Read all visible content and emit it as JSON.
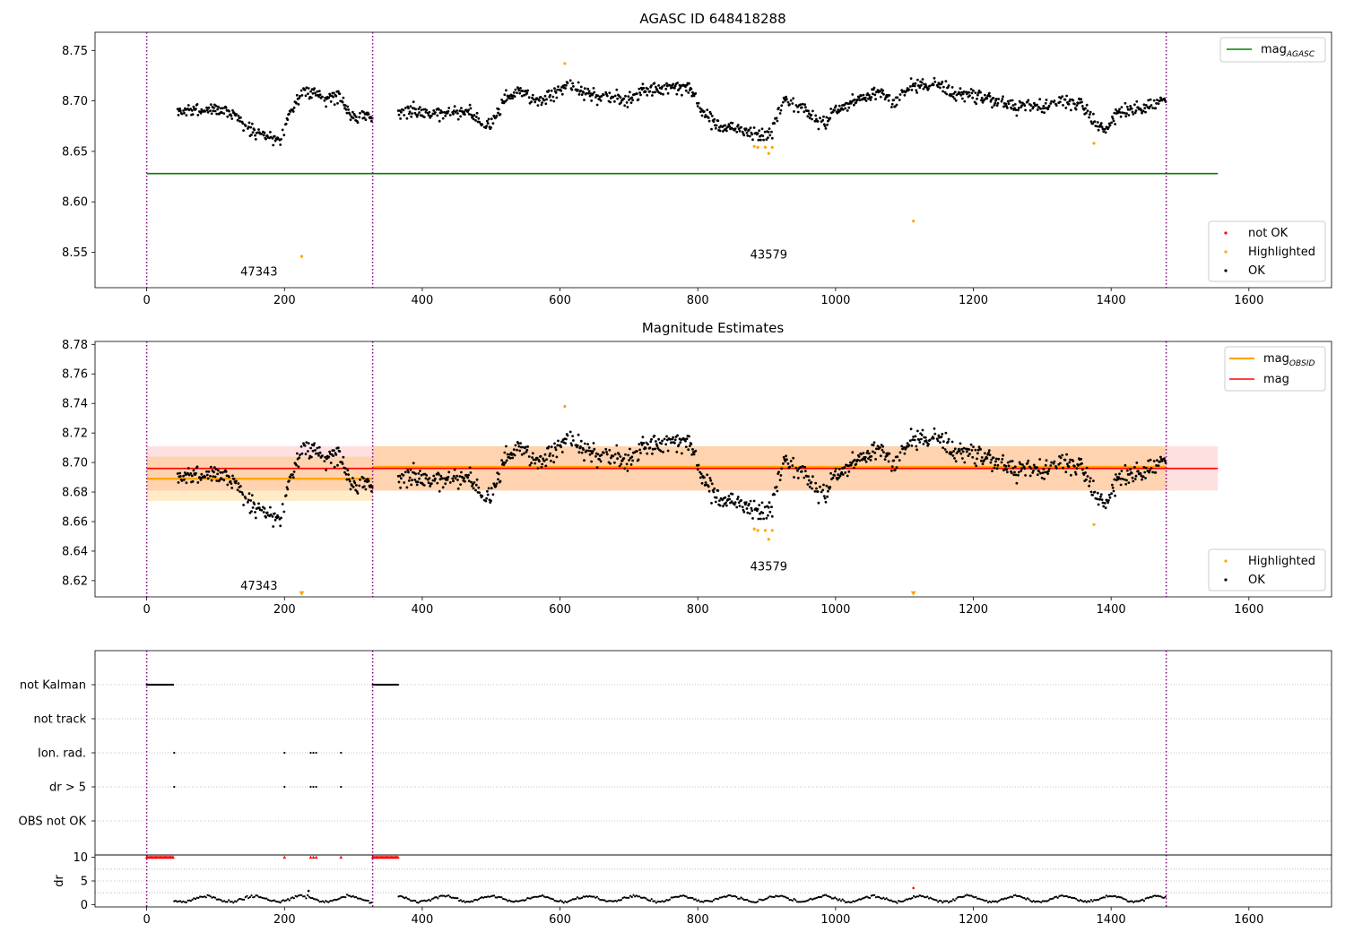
{
  "chart_data": [
    {
      "id": "agasc",
      "type": "scatter",
      "title": "AGASC ID 648418288",
      "xlim": [
        -75,
        1720
      ],
      "ylim": [
        8.515,
        8.768
      ],
      "xticks": [
        0,
        200,
        400,
        600,
        800,
        1000,
        1200,
        1400,
        1600
      ],
      "yticks": [
        8.55,
        8.6,
        8.65,
        8.7,
        8.75
      ],
      "vlines": [
        0,
        328,
        1480
      ],
      "hlines": [
        {
          "name": "mag_AGASC",
          "y": 8.628,
          "x0": 0,
          "x1": 1555,
          "color": "#008000"
        }
      ],
      "obs_labels": [
        {
          "text": "47343",
          "x": 163,
          "y": 8.527
        },
        {
          "text": "43579",
          "x": 903,
          "y": 8.544
        }
      ],
      "legend_top": {
        "entries": [
          {
            "label": "mag",
            "sub": "AGASC",
            "color": "#008000"
          }
        ]
      },
      "legend_bottom": {
        "entries": [
          {
            "label": "not OK",
            "color": "#ff0000"
          },
          {
            "label": "Highlighted",
            "color": "#ffa500"
          },
          {
            "label": "OK",
            "color": "#000000"
          }
        ]
      },
      "highlighted": [
        [
          225,
          8.546
        ],
        [
          607,
          8.737
        ],
        [
          882,
          8.655
        ],
        [
          887,
          8.654
        ],
        [
          898,
          8.654
        ],
        [
          903,
          8.648
        ],
        [
          908,
          8.654
        ],
        [
          1113,
          8.581
        ],
        [
          1375,
          8.658
        ]
      ]
    },
    {
      "id": "estimates",
      "type": "scatter",
      "title": "Magnitude Estimates",
      "xlim": [
        -75,
        1720
      ],
      "ylim": [
        8.609,
        8.782
      ],
      "xticks": [
        0,
        200,
        400,
        600,
        800,
        1000,
        1200,
        1400,
        1600
      ],
      "yticks": [
        8.62,
        8.64,
        8.66,
        8.68,
        8.7,
        8.72,
        8.74,
        8.76,
        8.78
      ],
      "vlines": [
        0,
        328,
        1480
      ],
      "mag": {
        "y": 8.696,
        "band": [
          8.681,
          8.711
        ],
        "x0": 0,
        "x1": 1555,
        "color": "#ff0000"
      },
      "mag_obsid": [
        {
          "x0": 0,
          "x1": 328,
          "y": 8.689,
          "band": [
            8.674,
            8.704
          ]
        },
        {
          "x0": 328,
          "x1": 1480,
          "y": 8.697,
          "band": [
            8.681,
            8.711
          ]
        }
      ],
      "obs_labels": [
        {
          "text": "47343",
          "x": 163,
          "y": 8.614
        },
        {
          "text": "43579",
          "x": 903,
          "y": 8.627
        }
      ],
      "legend_top": {
        "entries": [
          {
            "label": "mag",
            "sub": "OBSID",
            "color": "#ffa500"
          },
          {
            "label": "mag",
            "sub": "",
            "color": "#ff0000"
          }
        ]
      },
      "legend_bottom": {
        "entries": [
          {
            "label": "Highlighted",
            "color": "#ffa500"
          },
          {
            "label": "OK",
            "color": "#000000"
          }
        ]
      },
      "highlighted": [
        [
          607,
          8.738
        ],
        [
          882,
          8.655
        ],
        [
          887,
          8.654
        ],
        [
          898,
          8.654
        ],
        [
          903,
          8.648
        ],
        [
          908,
          8.654
        ],
        [
          1375,
          8.658
        ]
      ],
      "offscale_markers": [
        [
          225,
          8.611
        ],
        [
          1113,
          8.611
        ]
      ]
    },
    {
      "id": "flags",
      "type": "scatter",
      "categories": [
        "not Kalman",
        "not track",
        "Ion. rad.",
        "dr > 5",
        "OBS not OK"
      ],
      "xlim": [
        -75,
        1720
      ],
      "vlines": [
        0,
        328,
        1480
      ],
      "flag_points": {
        "not Kalman": [
          [
            0,
            40
          ],
          [
            328,
            365
          ]
        ],
        "Ion. rad.": [
          40,
          200,
          238,
          242,
          246,
          282
        ],
        "dr > 5": [
          40,
          200,
          238,
          242,
          246,
          282
        ]
      }
    },
    {
      "id": "dr",
      "type": "scatter",
      "ylabel": "dr",
      "ylim": [
        -0.5,
        10.5
      ],
      "xlim": [
        -75,
        1720
      ],
      "xticks": [
        0,
        200,
        400,
        600,
        800,
        1000,
        1200,
        1400,
        1600
      ],
      "yticks": [
        0,
        5,
        10
      ],
      "vlines": [
        0,
        328,
        1480
      ],
      "clipped_at": 10,
      "clipped_ranges": [
        [
          0,
          40
        ],
        [
          328,
          365
        ]
      ],
      "clipped_points": [
        200,
        238,
        242,
        246,
        282
      ],
      "outliers": [
        [
          235,
          2.9
        ],
        [
          1113,
          3.5
        ]
      ]
    }
  ]
}
